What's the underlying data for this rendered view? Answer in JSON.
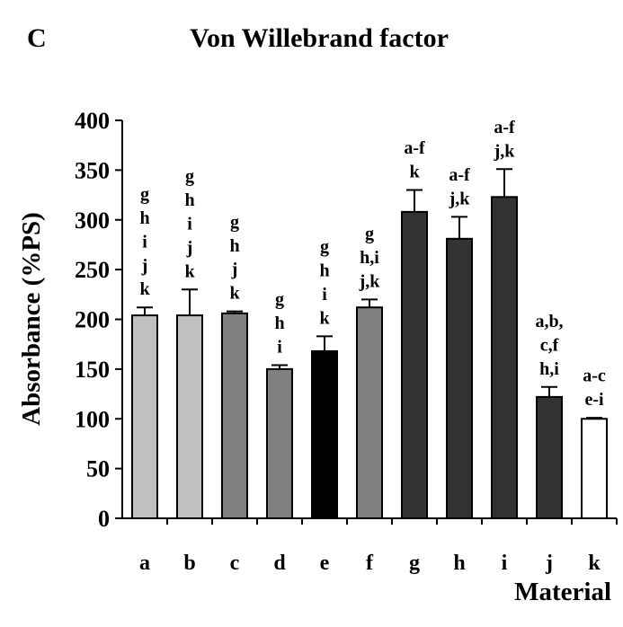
{
  "panel_label": "C",
  "chart_data": {
    "type": "bar",
    "title": "Von Willebrand factor",
    "xlabel": "Material",
    "ylabel": "Absorbance (%PS)",
    "ylim": [
      0,
      400
    ],
    "yticks": [
      0,
      50,
      100,
      150,
      200,
      250,
      300,
      350,
      400
    ],
    "grid": false,
    "legend": "none",
    "categories": [
      "a",
      "b",
      "c",
      "d",
      "e",
      "f",
      "g",
      "h",
      "i",
      "j",
      "k"
    ],
    "values": [
      204,
      204,
      206,
      150,
      168,
      212,
      308,
      281,
      323,
      122,
      100
    ],
    "errors": [
      8,
      26,
      2,
      4,
      15,
      8,
      22,
      22,
      28,
      10,
      1
    ],
    "bar_colors": [
      "#c0c0c0",
      "#c0c0c0",
      "#808080",
      "#808080",
      "#000000",
      "#808080",
      "#333333",
      "#333333",
      "#333333",
      "#333333",
      "#ffffff"
    ],
    "annotations": [
      [
        "g",
        "h",
        "i",
        "j",
        "k"
      ],
      [
        "g",
        "h",
        "i",
        "j",
        "k"
      ],
      [
        "g",
        "h",
        "j",
        "k"
      ],
      [
        "g",
        "h",
        "i"
      ],
      [
        "g",
        "h",
        "i",
        "k"
      ],
      [
        "g",
        "h,i",
        "j,k"
      ],
      [
        "a-f",
        "k"
      ],
      [
        "a-f",
        "j,k"
      ],
      [
        "a-f",
        "j,k"
      ],
      [
        "a,b,",
        "c,f",
        "h,i"
      ],
      [
        "a-c",
        "e-i"
      ]
    ]
  }
}
